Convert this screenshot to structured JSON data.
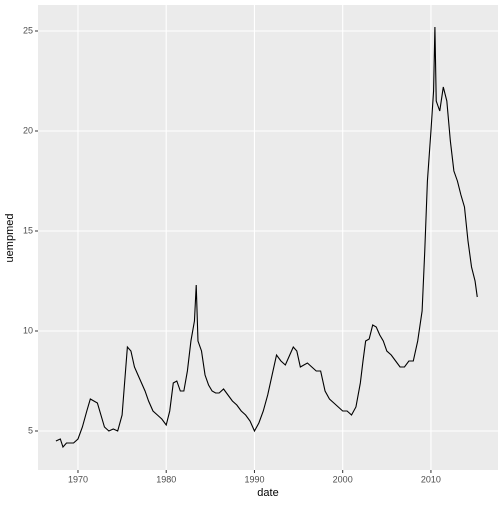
{
  "chart_data": {
    "type": "line",
    "x_label": "date",
    "y_label": "uempmed",
    "x": [
      1967.5,
      1968,
      1968.3,
      1968.7,
      1969,
      1969.5,
      1970,
      1970.5,
      1971,
      1971.4,
      1971.8,
      1972.2,
      1972.6,
      1973,
      1973.5,
      1974,
      1974.5,
      1975,
      1975.3,
      1975.6,
      1976,
      1976.4,
      1976.8,
      1977.2,
      1977.6,
      1978,
      1978.5,
      1979,
      1979.5,
      1980,
      1980.4,
      1980.8,
      1981.2,
      1981.6,
      1982,
      1982.4,
      1982.8,
      1983.2,
      1983.4,
      1983.6,
      1984,
      1984.4,
      1984.8,
      1985.2,
      1985.6,
      1986,
      1986.5,
      1987,
      1987.5,
      1988,
      1988.5,
      1989,
      1989.5,
      1990,
      1990.5,
      1991,
      1991.5,
      1992,
      1992.5,
      1993,
      1993.5,
      1994,
      1994.4,
      1994.8,
      1995.2,
      1995.6,
      1996,
      1996.5,
      1997,
      1997.5,
      1998,
      1998.5,
      1999,
      1999.5,
      2000,
      2000.5,
      2001,
      2001.5,
      2002,
      2002.3,
      2002.6,
      2003,
      2003.4,
      2003.8,
      2004.2,
      2004.6,
      2005,
      2005.5,
      2006,
      2006.5,
      2007,
      2007.5,
      2008,
      2008.5,
      2009,
      2009.3,
      2009.6,
      2010,
      2010.3,
      2010.45,
      2010.6,
      2011,
      2011.4,
      2011.8,
      2012.2,
      2012.6,
      2013,
      2013.4,
      2013.8,
      2014.2,
      2014.6,
      2015,
      2015.25
    ],
    "series": [
      {
        "color": "#000000",
        "values": [
          4.5,
          4.6,
          4.2,
          4.4,
          4.4,
          4.4,
          4.6,
          5.2,
          6.0,
          6.6,
          6.5,
          6.4,
          5.8,
          5.2,
          5.0,
          5.1,
          5.0,
          5.8,
          7.5,
          9.2,
          9.0,
          8.2,
          7.8,
          7.4,
          7.0,
          6.5,
          6.0,
          5.8,
          5.6,
          5.3,
          6.0,
          7.4,
          7.5,
          7.0,
          7.0,
          8.0,
          9.5,
          10.5,
          12.3,
          9.5,
          9.0,
          7.8,
          7.3,
          7.0,
          6.9,
          6.9,
          7.1,
          6.8,
          6.5,
          6.3,
          6.0,
          5.8,
          5.5,
          5.0,
          5.4,
          6.0,
          6.8,
          7.8,
          8.8,
          8.5,
          8.3,
          8.8,
          9.2,
          9.0,
          8.2,
          8.3,
          8.4,
          8.2,
          8.0,
          8.0,
          7.0,
          6.6,
          6.4,
          6.2,
          6.0,
          6.0,
          5.8,
          6.2,
          7.4,
          8.5,
          9.5,
          9.6,
          10.3,
          10.2,
          9.8,
          9.5,
          9.0,
          8.8,
          8.5,
          8.2,
          8.2,
          8.5,
          8.5,
          9.5,
          11.0,
          14.0,
          17.5,
          20.0,
          22.0,
          25.2,
          21.5,
          21.0,
          22.2,
          21.5,
          19.5,
          18.0,
          17.5,
          16.8,
          16.2,
          14.5,
          13.2,
          12.5,
          11.7
        ]
      }
    ],
    "xlim": [
      1965.47,
      2017.6
    ],
    "xticks": [
      1970,
      1980,
      1990,
      2000,
      2010
    ],
    "ylim": [
      3.05,
      26.3
    ],
    "yticks": [
      5,
      10,
      15,
      20,
      25
    ],
    "grid": true
  }
}
